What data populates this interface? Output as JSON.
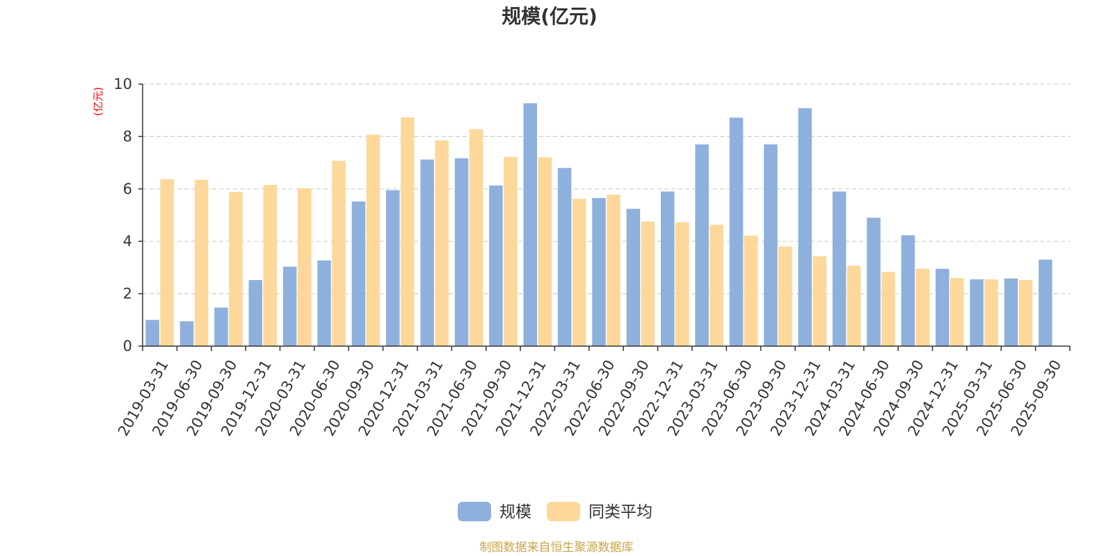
{
  "chart_data": {
    "type": "bar",
    "title": "规模(亿元)",
    "ylabel": "(亿元)",
    "xlabel": "",
    "ylim": [
      0,
      10
    ],
    "yticks": [
      0,
      2,
      4,
      6,
      8,
      10
    ],
    "grid": "horizontal-dashed",
    "legend_position": "bottom-center",
    "categories": [
      "2019-03-31",
      "2019-06-30",
      "2019-09-30",
      "2019-12-31",
      "2020-03-31",
      "2020-06-30",
      "2020-09-30",
      "2020-12-31",
      "2021-03-31",
      "2021-06-30",
      "2021-09-30",
      "2021-12-31",
      "2022-03-31",
      "2022-06-30",
      "2022-09-30",
      "2022-12-31",
      "2023-03-31",
      "2023-06-30",
      "2023-09-30",
      "2023-12-31",
      "2024-03-31",
      "2024-06-30",
      "2024-09-30",
      "2024-12-31",
      "2025-03-31",
      "2025-06-30",
      "2025-09-30"
    ],
    "series": [
      {
        "name": "规模",
        "color": "#8eb0dc",
        "values": [
          1.0,
          0.95,
          1.47,
          2.52,
          3.03,
          3.27,
          5.52,
          5.95,
          7.12,
          7.17,
          6.13,
          9.27,
          6.8,
          5.65,
          5.24,
          5.9,
          7.7,
          8.72,
          7.7,
          9.08,
          5.9,
          4.9,
          4.23,
          2.95,
          2.55,
          2.58,
          3.3
        ]
      },
      {
        "name": "同类平均",
        "color": "#fdd89a",
        "values": [
          6.37,
          6.35,
          5.88,
          6.15,
          6.02,
          7.07,
          8.07,
          8.73,
          7.85,
          8.28,
          7.22,
          7.2,
          5.62,
          5.78,
          4.75,
          4.73,
          4.63,
          4.22,
          3.8,
          3.43,
          3.07,
          2.83,
          2.95,
          2.6,
          2.55,
          2.52,
          null
        ]
      }
    ]
  },
  "colors": {
    "axis": "#333333",
    "grid": "#cccccc",
    "ylabel": "#ff0000",
    "source": "#c9a44a"
  },
  "source_text": "制图数据来自恒生聚源数据库"
}
